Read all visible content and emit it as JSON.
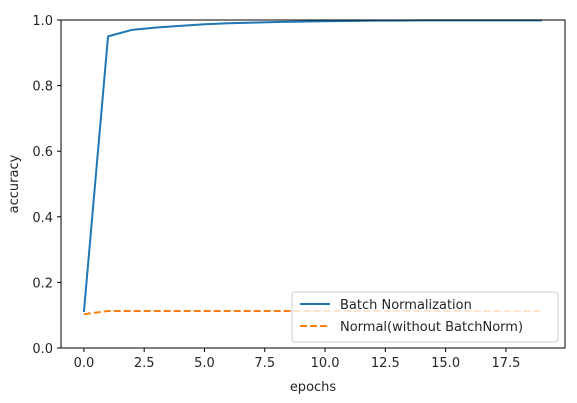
{
  "chart_data": {
    "type": "line",
    "xlabel": "epochs",
    "ylabel": "accuracy",
    "xlim": [
      -0.95,
      19.95
    ],
    "ylim": [
      0.0,
      1.0
    ],
    "x_ticks": [
      0.0,
      2.5,
      5.0,
      7.5,
      10.0,
      12.5,
      15.0,
      17.5
    ],
    "x_tick_labels": [
      "0.0",
      "2.5",
      "5.0",
      "7.5",
      "10.0",
      "12.5",
      "15.0",
      "17.5"
    ],
    "y_ticks": [
      0.0,
      0.2,
      0.4,
      0.6,
      0.8,
      1.0
    ],
    "y_tick_labels": [
      "0.0",
      "0.2",
      "0.4",
      "0.6",
      "0.8",
      "1.0"
    ],
    "grid": false,
    "legend_position": "lower-right",
    "x": [
      0,
      1,
      2,
      3,
      4,
      5,
      6,
      7,
      8,
      9,
      10,
      11,
      12,
      13,
      14,
      15,
      16,
      17,
      18,
      19
    ],
    "series": [
      {
        "name": "Batch Normalization",
        "color": "#1f77b4",
        "style": "solid",
        "values": [
          0.11,
          0.95,
          0.97,
          0.977,
          0.982,
          0.987,
          0.99,
          0.992,
          0.994,
          0.995,
          0.996,
          0.997,
          0.998,
          0.998,
          0.999,
          0.999,
          0.999,
          0.999,
          0.999,
          0.999
        ]
      },
      {
        "name": "Normal(without BatchNorm)",
        "color": "#ff7f0e",
        "style": "dashed",
        "values": [
          0.103,
          0.113,
          0.113,
          0.113,
          0.113,
          0.113,
          0.113,
          0.113,
          0.113,
          0.113,
          0.113,
          0.113,
          0.113,
          0.113,
          0.113,
          0.113,
          0.113,
          0.113,
          0.113,
          0.113
        ]
      }
    ]
  }
}
